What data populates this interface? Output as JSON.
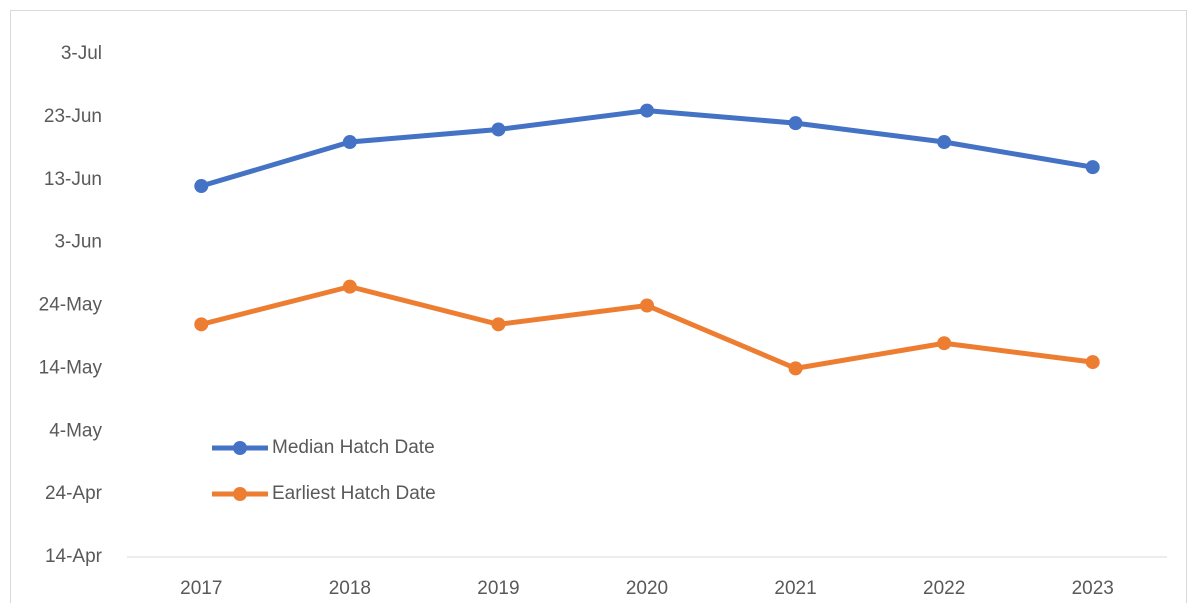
{
  "chart_data": {
    "type": "line",
    "categories": [
      "2017",
      "2018",
      "2019",
      "2020",
      "2021",
      "2022",
      "2023"
    ],
    "series": [
      {
        "name": "Median Hatch Date",
        "color": "#4472c4",
        "values": [
          163,
          170,
          172,
          175,
          173,
          170,
          166
        ]
      },
      {
        "name": "Earliest Hatch Date",
        "color": "#ed7d31",
        "values": [
          141,
          147,
          141,
          144,
          134,
          138,
          135
        ]
      }
    ],
    "ylim": [
      104,
      184
    ],
    "yticks": [
      {
        "value": 104,
        "label": "14-Apr"
      },
      {
        "value": 114,
        "label": "24-Apr"
      },
      {
        "value": 124,
        "label": "4-May"
      },
      {
        "value": 134,
        "label": "14-May"
      },
      {
        "value": 144,
        "label": "24-May"
      },
      {
        "value": 154,
        "label": "3-Jun"
      },
      {
        "value": 164,
        "label": "13-Jun"
      },
      {
        "value": 174,
        "label": "23-Jun"
      },
      {
        "value": 184,
        "label": "3-Jul"
      }
    ],
    "legend": "lower left"
  }
}
